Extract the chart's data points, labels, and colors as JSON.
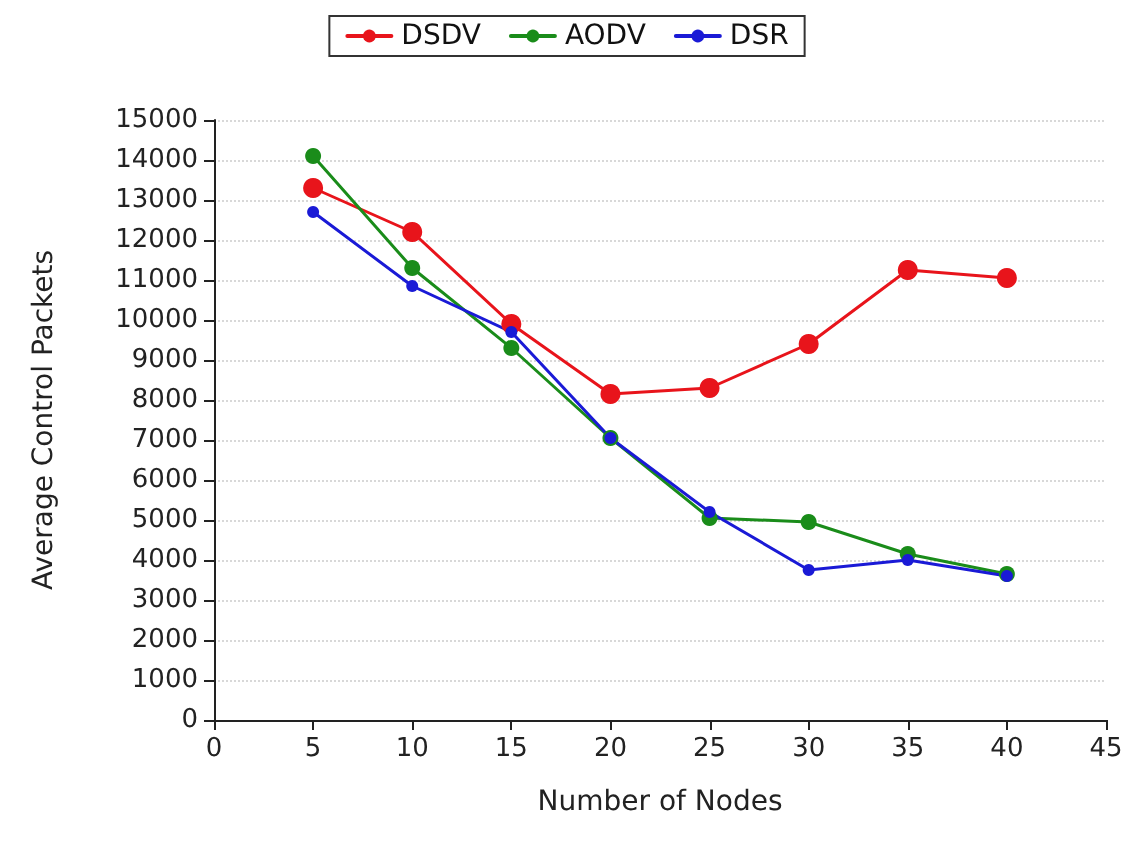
{
  "chart_data": {
    "type": "line",
    "xlabel": "Number of Nodes",
    "ylabel": "Average Control Packets",
    "x": [
      5,
      10,
      15,
      20,
      25,
      30,
      35,
      40
    ],
    "series": [
      {
        "name": "DSDV",
        "color": "#e8141b",
        "values": [
          13300,
          12200,
          9900,
          8150,
          8300,
          9400,
          11250,
          11050
        ]
      },
      {
        "name": "AODV",
        "color": "#1a8c1a",
        "values": [
          14100,
          11300,
          9300,
          7050,
          5050,
          4950,
          4150,
          3650
        ]
      },
      {
        "name": "DSR",
        "color": "#1a1ad6",
        "values": [
          12700,
          10850,
          9700,
          7050,
          5200,
          3750,
          4000,
          3600
        ]
      }
    ],
    "xlim": [
      0,
      45
    ],
    "xticks": [
      0,
      5,
      10,
      15,
      20,
      25,
      30,
      35,
      40,
      45
    ],
    "ylim": [
      0,
      15000
    ],
    "yticks": [
      0,
      1000,
      2000,
      3000,
      4000,
      5000,
      6000,
      7000,
      8000,
      9000,
      10000,
      11000,
      12000,
      13000,
      14000,
      15000
    ],
    "grid": "y",
    "legend": "top",
    "marker": "circle",
    "line_style": "solid"
  }
}
